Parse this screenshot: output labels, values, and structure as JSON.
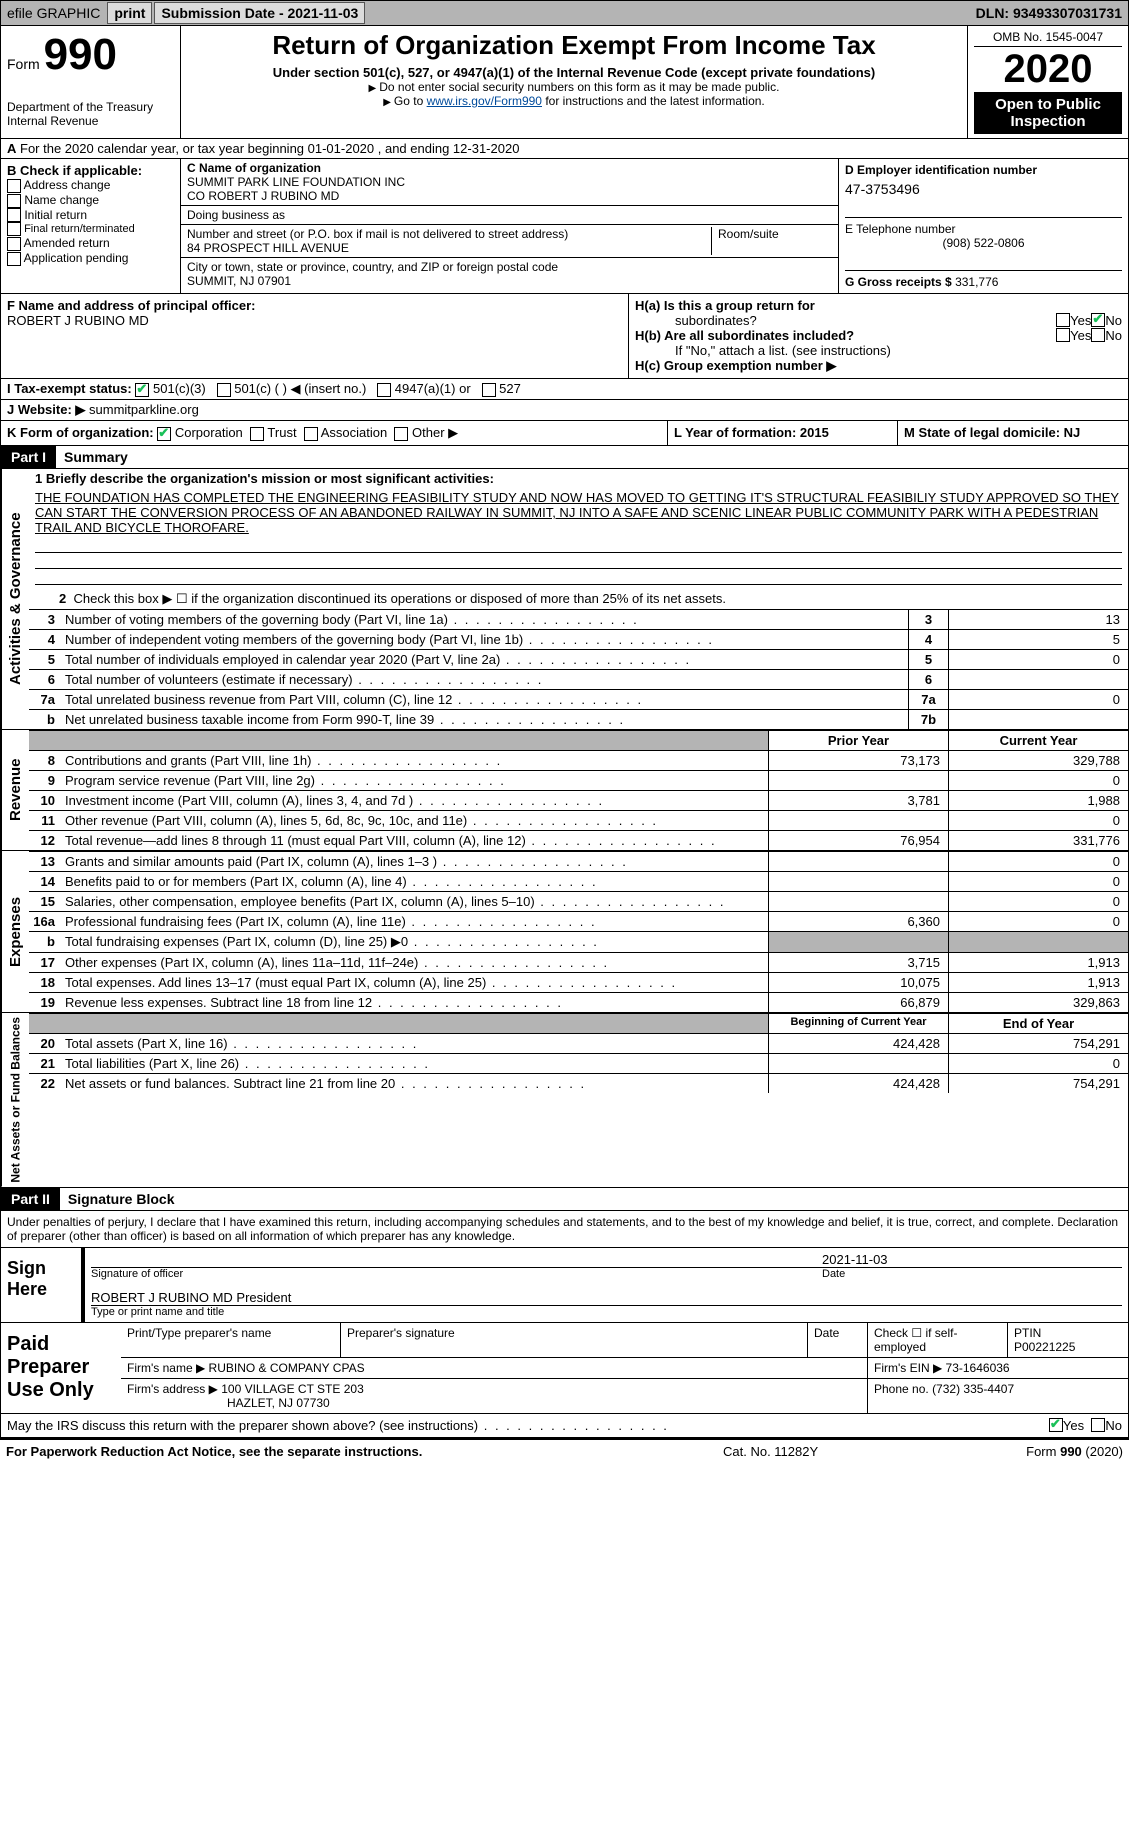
{
  "topbar": {
    "efile": "efile GRAPHIC",
    "print": "print",
    "submission": "Submission Date - 2021-11-03",
    "dln": "DLN: 93493307031731"
  },
  "header": {
    "form_prefix": "Form",
    "form_number": "990",
    "dept1": "Department of the Treasury",
    "dept2": "Internal Revenue",
    "title": "Return of Organization Exempt From Income Tax",
    "subtitle": "Under section 501(c), 527, or 4947(a)(1) of the Internal Revenue Code (except private foundations)",
    "line1": "Do not enter social security numbers on this form as it may be made public.",
    "line2_pre": "Go to ",
    "line2_link": "www.irs.gov/Form990",
    "line2_post": " for instructions and the latest information.",
    "omb": "OMB No. 1545-0047",
    "year": "2020",
    "inspect": "Open to Public Inspection"
  },
  "row_a": "For the 2020 calendar year, or tax year beginning 01-01-2020    , and ending 12-31-2020",
  "box_b": {
    "title": "B Check if applicable:",
    "opts": [
      "Address change",
      "Name change",
      "Initial return",
      "Final return/terminated",
      "Amended return",
      "Application pending"
    ]
  },
  "box_c": {
    "label": "C Name of organization",
    "name1": "SUMMIT PARK LINE FOUNDATION INC",
    "name2": "CO ROBERT J RUBINO MD",
    "dba_label": "Doing business as",
    "addr_label": "Number and street (or P.O. box if mail is not delivered to street address)",
    "addr": "84 PROSPECT HILL AVENUE",
    "room_label": "Room/suite",
    "city_label": "City or town, state or province, country, and ZIP or foreign postal code",
    "city": "SUMMIT, NJ  07901"
  },
  "box_d": {
    "label": "D Employer identification number",
    "ein": "47-3753496",
    "tel_label": "E Telephone number",
    "tel": "(908) 522-0806",
    "gross_label": "G Gross receipts $",
    "gross": "331,776"
  },
  "box_f": {
    "label": "F  Name and address of principal officer:",
    "name": "ROBERT J RUBINO MD"
  },
  "box_h": {
    "ha_label": "H(a)  Is this a group return for",
    "ha_sub": "subordinates?",
    "hb_label": "H(b)  Are all subordinates included?",
    "hb_note": "If \"No,\" attach a list. (see instructions)",
    "hc_label": "H(c)  Group exemption number ▶",
    "yes": "Yes",
    "no": "No"
  },
  "row_i": {
    "label": "I   Tax-exempt status:",
    "opts": [
      "501(c)(3)",
      "501(c) (  ) ◀ (insert no.)",
      "4947(a)(1) or",
      "527"
    ]
  },
  "row_j": {
    "label": "J   Website: ▶",
    "val": "summitparkline.org"
  },
  "row_k": {
    "label": "K Form of organization:",
    "opts": [
      "Corporation",
      "Trust",
      "Association",
      "Other ▶"
    ]
  },
  "row_l": "L Year of formation: 2015",
  "row_m": "M State of legal domicile: NJ",
  "part1": {
    "header": "Part I",
    "title": "Summary",
    "mission_label": "1  Briefly describe the organization's mission or most significant activities:",
    "mission": "THE FOUNDATION HAS COMPLETED THE ENGINEERING FEASIBILITY STUDY AND NOW HAS MOVED TO GETTING IT'S STRUCTURAL FEASIBILIY STUDY APPROVED SO THEY CAN START THE CONVERSION PROCESS OF AN ABANDONED RAILWAY IN SUMMIT, NJ INTO A SAFE AND SCENIC LINEAR PUBLIC COMMUNITY PARK WITH A PEDESTRIAN TRAIL AND BICYCLE THOROFARE.",
    "line2": "Check this box ▶ ☐  if the organization discontinued its operations or disposed of more than 25% of its net assets."
  },
  "vtabs": {
    "gov": "Activities & Governance",
    "rev": "Revenue",
    "exp": "Expenses",
    "net": "Net Assets or Fund Balances"
  },
  "gov_lines": [
    {
      "n": "3",
      "d": "Number of voting members of the governing body (Part VI, line 1a)",
      "b": "3",
      "v": "13"
    },
    {
      "n": "4",
      "d": "Number of independent voting members of the governing body (Part VI, line 1b)",
      "b": "4",
      "v": "5"
    },
    {
      "n": "5",
      "d": "Total number of individuals employed in calendar year 2020 (Part V, line 2a)",
      "b": "5",
      "v": "0"
    },
    {
      "n": "6",
      "d": "Total number of volunteers (estimate if necessary)",
      "b": "6",
      "v": ""
    },
    {
      "n": "7a",
      "d": "Total unrelated business revenue from Part VIII, column (C), line 12",
      "b": "7a",
      "v": "0"
    },
    {
      "n": "b",
      "d": "Net unrelated business taxable income from Form 990-T, line 39",
      "b": "7b",
      "v": ""
    }
  ],
  "col_headers": {
    "prior": "Prior Year",
    "current": "Current Year",
    "boy": "Beginning of Current Year",
    "eoy": "End of Year"
  },
  "rev_lines": [
    {
      "n": "8",
      "d": "Contributions and grants (Part VIII, line 1h)",
      "p": "73,173",
      "c": "329,788"
    },
    {
      "n": "9",
      "d": "Program service revenue (Part VIII, line 2g)",
      "p": "",
      "c": "0"
    },
    {
      "n": "10",
      "d": "Investment income (Part VIII, column (A), lines 3, 4, and 7d )",
      "p": "3,781",
      "c": "1,988"
    },
    {
      "n": "11",
      "d": "Other revenue (Part VIII, column (A), lines 5, 6d, 8c, 9c, 10c, and 11e)",
      "p": "",
      "c": "0"
    },
    {
      "n": "12",
      "d": "Total revenue—add lines 8 through 11 (must equal Part VIII, column (A), line 12)",
      "p": "76,954",
      "c": "331,776"
    }
  ],
  "exp_lines": [
    {
      "n": "13",
      "d": "Grants and similar amounts paid (Part IX, column (A), lines 1–3 )",
      "p": "",
      "c": "0"
    },
    {
      "n": "14",
      "d": "Benefits paid to or for members (Part IX, column (A), line 4)",
      "p": "",
      "c": "0"
    },
    {
      "n": "15",
      "d": "Salaries, other compensation, employee benefits (Part IX, column (A), lines 5–10)",
      "p": "",
      "c": "0"
    },
    {
      "n": "16a",
      "d": "Professional fundraising fees (Part IX, column (A), line 11e)",
      "p": "6,360",
      "c": "0"
    },
    {
      "n": "b",
      "d": "Total fundraising expenses (Part IX, column (D), line 25) ▶0",
      "p": "GREY",
      "c": "GREY"
    },
    {
      "n": "17",
      "d": "Other expenses (Part IX, column (A), lines 11a–11d, 11f–24e)",
      "p": "3,715",
      "c": "1,913"
    },
    {
      "n": "18",
      "d": "Total expenses. Add lines 13–17 (must equal Part IX, column (A), line 25)",
      "p": "10,075",
      "c": "1,913"
    },
    {
      "n": "19",
      "d": "Revenue less expenses. Subtract line 18 from line 12",
      "p": "66,879",
      "c": "329,863"
    }
  ],
  "net_lines": [
    {
      "n": "20",
      "d": "Total assets (Part X, line 16)",
      "p": "424,428",
      "c": "754,291"
    },
    {
      "n": "21",
      "d": "Total liabilities (Part X, line 26)",
      "p": "",
      "c": "0"
    },
    {
      "n": "22",
      "d": "Net assets or fund balances. Subtract line 21 from line 20",
      "p": "424,428",
      "c": "754,291"
    }
  ],
  "part2": {
    "header": "Part II",
    "title": "Signature Block",
    "decl": "Under penalties of perjury, I declare that I have examined this return, including accompanying schedules and statements, and to the best of my knowledge and belief, it is true, correct, and complete. Declaration of preparer (other than officer) is based on all information of which preparer has any knowledge.",
    "sign_here": "Sign Here",
    "sig_officer": "Signature of officer",
    "sig_date": "2021-11-03",
    "date_label": "Date",
    "officer_name": "ROBERT J RUBINO MD  President",
    "type_label": "Type or print name and title",
    "paid": "Paid Preparer Use Only",
    "prep_name_label": "Print/Type preparer's name",
    "prep_sig_label": "Preparer's signature",
    "prep_date_label": "Date",
    "check_label": "Check ☐ if self-employed",
    "ptin_label": "PTIN",
    "ptin": "P00221225",
    "firm_name_label": "Firm's name   ▶",
    "firm_name": "RUBINO & COMPANY CPAS",
    "firm_ein_label": "Firm's EIN ▶",
    "firm_ein": "73-1646036",
    "firm_addr_label": "Firm's address ▶",
    "firm_addr1": "100 VILLAGE CT STE 203",
    "firm_addr2": "HAZLET, NJ  07730",
    "phone_label": "Phone no.",
    "phone": "(732) 335-4407",
    "discuss": "May the IRS discuss this return with the preparer shown above? (see instructions)"
  },
  "footer": {
    "left": "For Paperwork Reduction Act Notice, see the separate instructions.",
    "mid": "Cat. No. 11282Y",
    "right": "Form 990 (2020)"
  }
}
